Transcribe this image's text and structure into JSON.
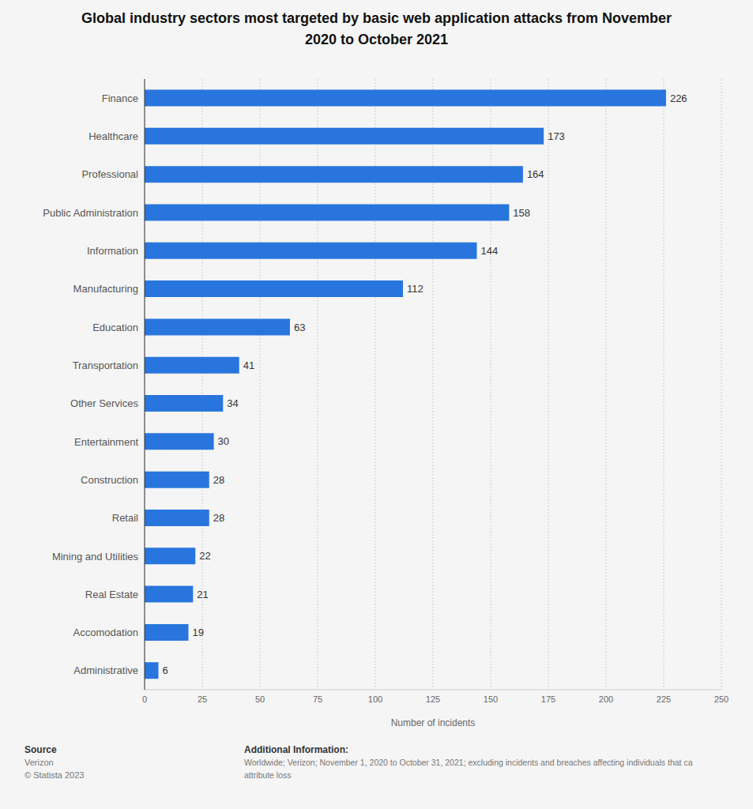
{
  "chart_data": {
    "type": "bar",
    "title": "Global industry sectors most targeted by basic web application attacks from November 2020 to October 2021",
    "orientation": "horizontal",
    "categories": [
      "Finance",
      "Healthcare",
      "Professional",
      "Public Administration",
      "Information",
      "Manufacturing",
      "Education",
      "Transportation",
      "Other Services",
      "Entertainment",
      "Construction",
      "Retail",
      "Mining and Utilities",
      "Real Estate",
      "Accomodation",
      "Administrative"
    ],
    "values": [
      226,
      173,
      164,
      158,
      144,
      112,
      63,
      41,
      34,
      30,
      28,
      28,
      22,
      21,
      19,
      6
    ],
    "color": "#2876dd",
    "xlabel": "Number of incidents",
    "xlim": [
      0,
      250
    ],
    "xticks": [
      0,
      25,
      50,
      75,
      100,
      125,
      150,
      175,
      200,
      225,
      250
    ],
    "grid": true,
    "data_labels": true,
    "source": {
      "heading": "Source",
      "lines": [
        "Verizon",
        "© Statista 2023"
      ]
    },
    "additional_information": {
      "heading": "Additional Information:",
      "lines": [
        "Worldwide; Verizon; November 1, 2020 to October 31, 2021; excluding incidents and breaches affecting individuals that ca",
        "attribute loss"
      ]
    }
  }
}
